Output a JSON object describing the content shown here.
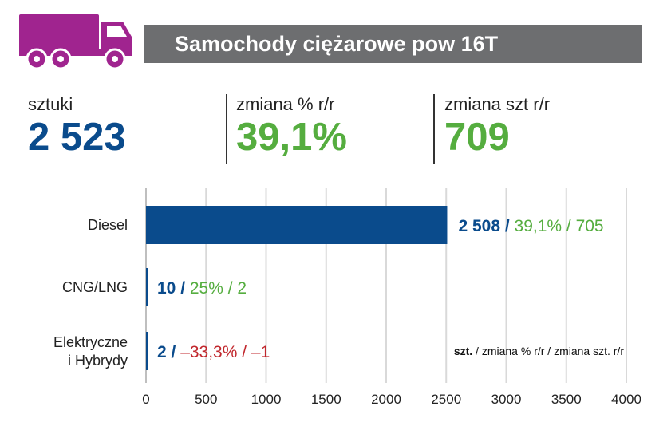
{
  "header": {
    "title": "Samochody ciężarowe pow 16T",
    "icon": "truck-icon",
    "icon_color": "#a0248f",
    "bar_color": "#6d6e70"
  },
  "kpis": [
    {
      "label": "sztuki",
      "value": "2 523",
      "color": "#0a4b8c"
    },
    {
      "label": "zmiana % r/r",
      "value": "39,1%",
      "color": "#55ad3f"
    },
    {
      "label": "zmiana szt r/r",
      "value": "709",
      "color": "#55ad3f"
    }
  ],
  "chart_data": {
    "type": "bar",
    "orientation": "horizontal",
    "categories": [
      "Diesel",
      "CNG/LNG",
      "Elektryczne i Hybrydy"
    ],
    "category_lines": [
      [
        "Diesel"
      ],
      [
        "CNG/LNG"
      ],
      [
        "Elektryczne",
        "i Hybrydy"
      ]
    ],
    "values": [
      2508,
      10,
      2
    ],
    "value_labels": [
      "2 508",
      "10",
      "2"
    ],
    "pct_change": [
      "39,1%",
      "25%",
      "–33,3%"
    ],
    "abs_change": [
      "705",
      "2",
      "–1"
    ],
    "change_colors": [
      "#55ad3f",
      "#55ad3f",
      "#c1272d"
    ],
    "bar_color": "#0a4b8c",
    "xlim": [
      0,
      4000
    ],
    "xticks": [
      0,
      500,
      1000,
      1500,
      2000,
      2500,
      3000,
      3500,
      4000
    ],
    "grid": true,
    "legend_note": {
      "bold": "szt.",
      "rest": " / zmiana % r/r / zmiana szt. r/r"
    }
  }
}
